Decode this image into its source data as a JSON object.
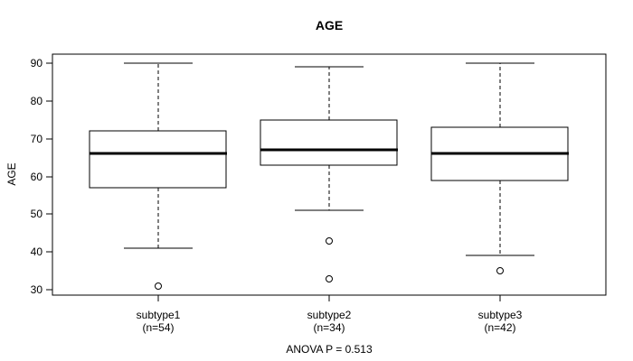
{
  "chart_data": {
    "type": "boxplot",
    "title": "AGE",
    "ylabel": "AGE",
    "xlabel": "",
    "annotation": "ANOVA P = 0.513",
    "ylim": [
      28.6,
      92.4
    ],
    "yticks": [
      30,
      40,
      50,
      60,
      70,
      80,
      90
    ],
    "xlim": [
      0.38,
      3.62
    ],
    "grid": false,
    "legend": "none",
    "box_width": 0.8,
    "cap_width": 0.4,
    "colors": {
      "line": "#000000",
      "box_fill": "#ffffff",
      "background": "#ffffff"
    },
    "groups": [
      {
        "label": "subtype1",
        "sublabel": "(n=54)",
        "position": 1,
        "whisker_low": 41,
        "q1": 57,
        "median": 66,
        "q3": 72,
        "whisker_high": 90,
        "outliers": [
          31
        ]
      },
      {
        "label": "subtype2",
        "sublabel": "(n=34)",
        "position": 2,
        "whisker_low": 51,
        "q1": 63,
        "median": 67,
        "q3": 75,
        "whisker_high": 89,
        "outliers": [
          43,
          33
        ]
      },
      {
        "label": "subtype3",
        "sublabel": "(n=42)",
        "position": 3,
        "whisker_low": 39,
        "q1": 59,
        "median": 66,
        "q3": 73,
        "whisker_high": 90,
        "outliers": [
          35
        ]
      }
    ]
  }
}
